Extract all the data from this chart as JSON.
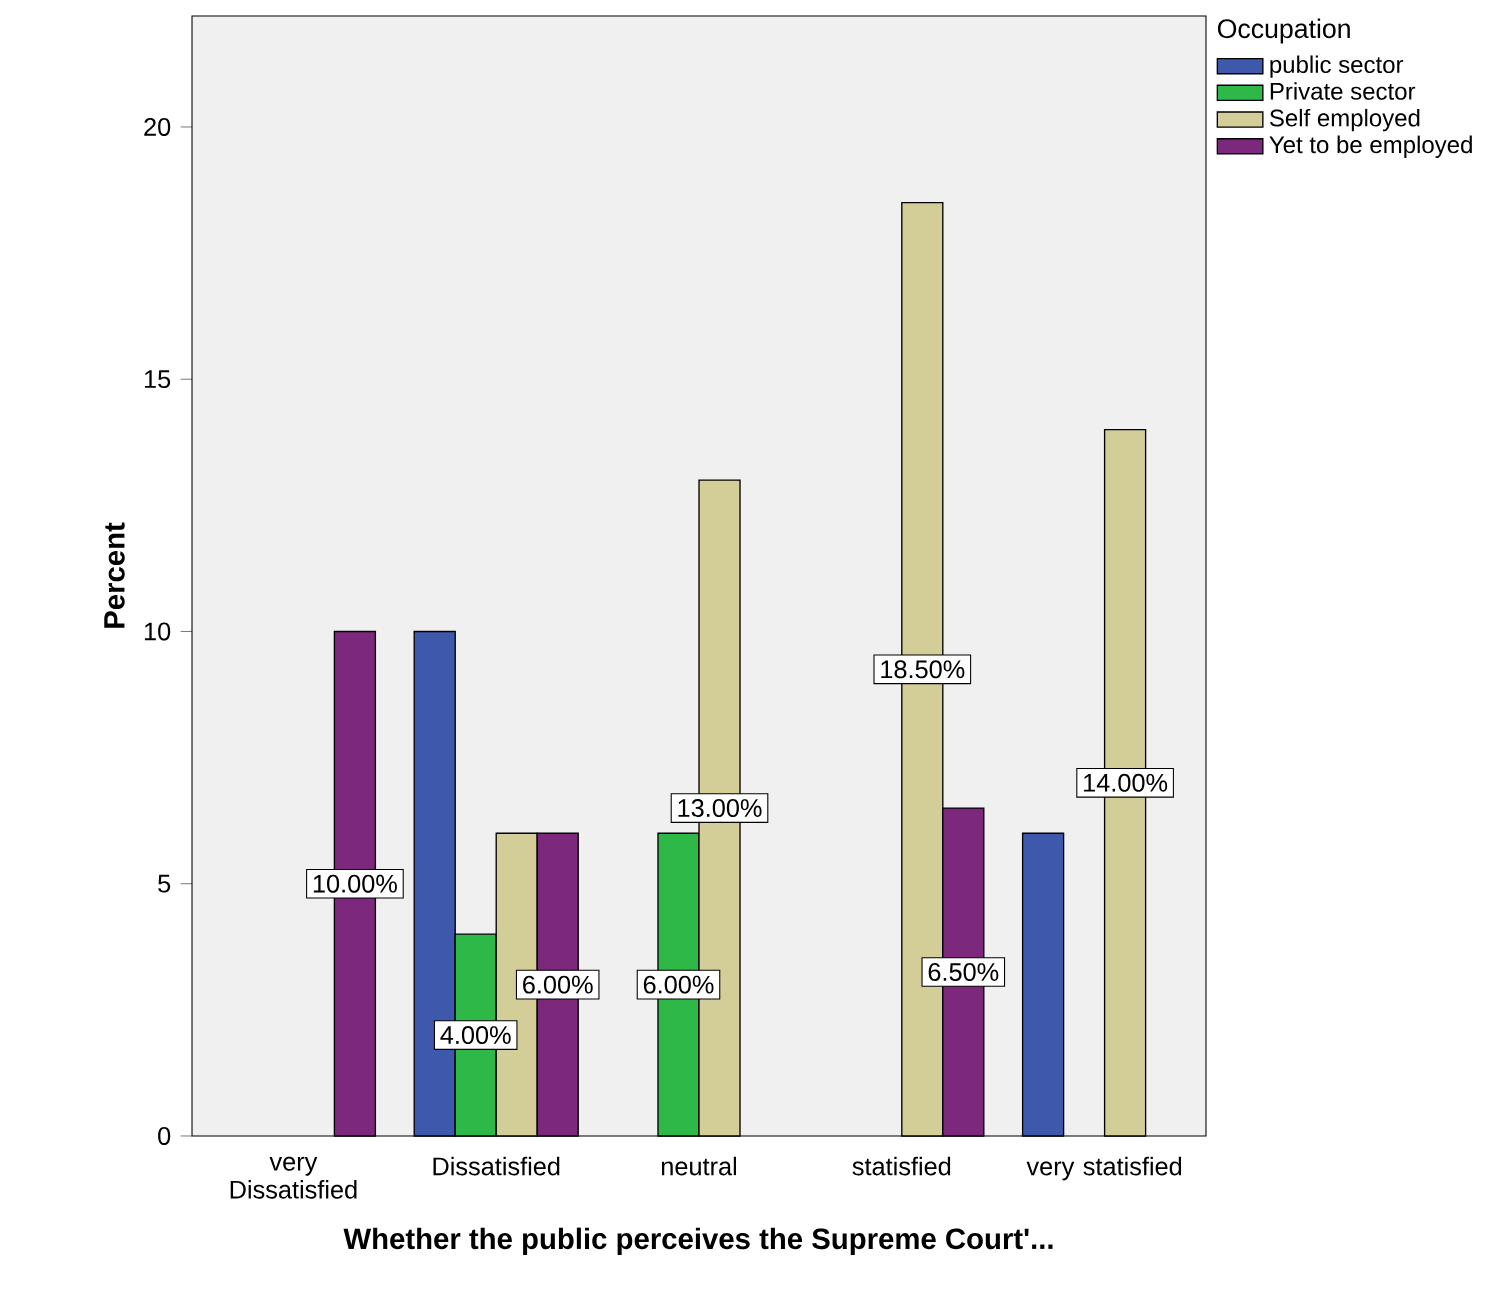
{
  "chart_data": {
    "type": "bar",
    "xlabel": "Whether the public perceives the Supreme Court'...",
    "ylabel": "Percent",
    "legend_title": "Occupation",
    "categories": [
      "very Dissatisfied",
      "Dissatisfied",
      "neutral",
      "statisfied",
      "very statisfied"
    ],
    "series": [
      {
        "name": "public sector",
        "color": "#3e58ac",
        "values": [
          null,
          10,
          null,
          null,
          6
        ],
        "value_labels": [
          null,
          null,
          null,
          null,
          null
        ]
      },
      {
        "name": "Private sector",
        "color": "#2eb848",
        "values": [
          null,
          4,
          6,
          null,
          null
        ],
        "value_labels": [
          null,
          "4.00%",
          "6.00%",
          null,
          null
        ]
      },
      {
        "name": "Self employed",
        "color": "#d3ce97",
        "values": [
          null,
          6,
          13,
          18.5,
          14
        ],
        "value_labels": [
          null,
          null,
          "13.00%",
          "18.50%",
          "14.00%"
        ]
      },
      {
        "name": "Yet to be employed",
        "color": "#7c287d",
        "values": [
          10,
          6,
          null,
          6.5,
          null
        ],
        "value_labels": [
          "10.00%",
          "6.00%",
          null,
          "6.50%",
          null
        ]
      }
    ],
    "ylim": [
      0,
      22.2
    ],
    "yticks": [
      0,
      5,
      10,
      15,
      20
    ],
    "grid": false,
    "legend": "top right"
  }
}
